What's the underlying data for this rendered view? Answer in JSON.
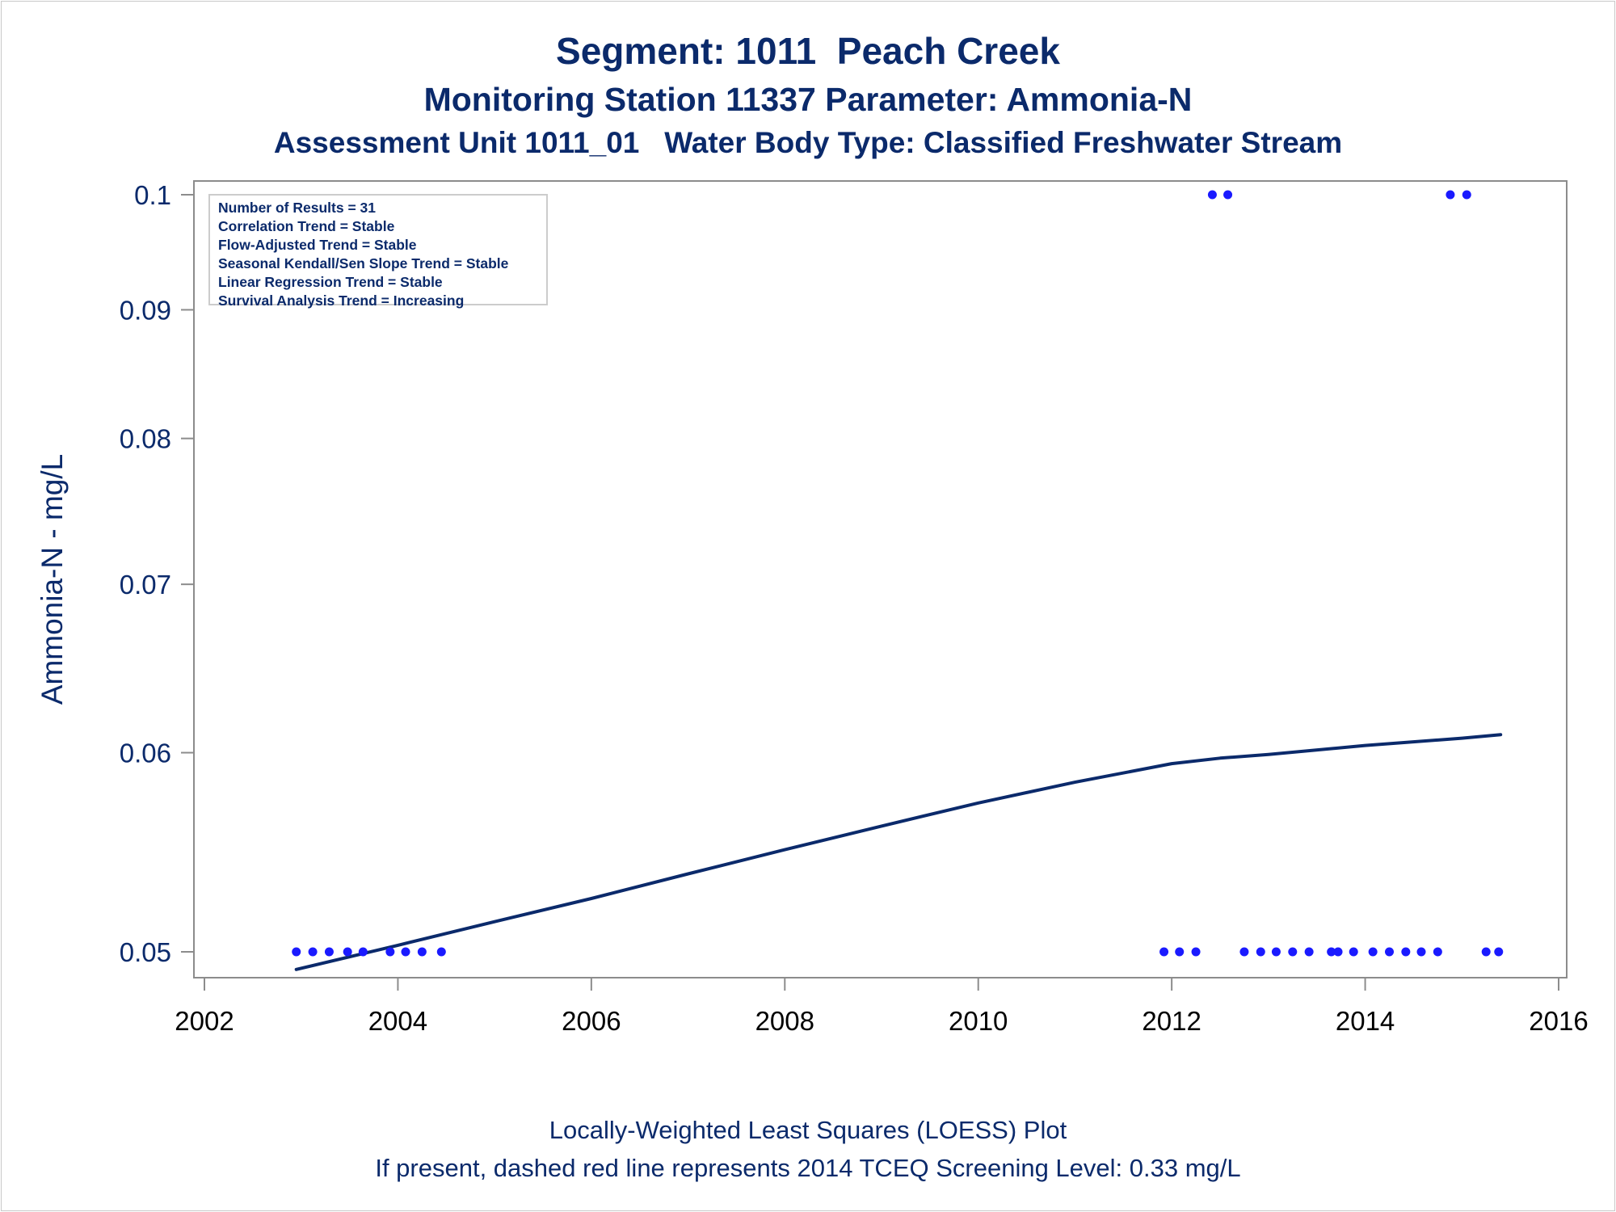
{
  "titles": {
    "line1": "Segment: 1011  Peach Creek",
    "line2": "Monitoring Station 11337 Parameter: Ammonia-N",
    "line3": "Assessment Unit 1011_01   Water Body Type: Classified Freshwater Stream"
  },
  "footnotes": {
    "line1": "Locally-Weighted Least Squares (LOESS) Plot",
    "line2": "If present, dashed red line represents 2014 TCEQ Screening Level: 0.33 mg/L"
  },
  "legend": [
    "Number of Results = 31",
    "Correlation Trend = Stable",
    "Flow-Adjusted Trend = Stable",
    "Seasonal Kendall/Sen Slope Trend = Stable",
    "Linear Regression Trend = Stable",
    "Survival Analysis Trend = Increasing"
  ],
  "chart_data": {
    "type": "scatter",
    "title": "Segment: 1011  Peach Creek",
    "xlabel": "",
    "ylabel": "Ammonia-N - mg/L",
    "yscale": "log",
    "xlim": [
      2002,
      2016
    ],
    "ylim": [
      0.05,
      0.1
    ],
    "xticks": [
      "2002",
      "2004",
      "2006",
      "2008",
      "2010",
      "2012",
      "2014",
      "2016"
    ],
    "yticks": [
      {
        "value": 0.05,
        "label": "0.05"
      },
      {
        "value": 0.06,
        "label": "0.06"
      },
      {
        "value": 0.07,
        "label": "0.07"
      },
      {
        "value": 0.08,
        "label": "0.08"
      },
      {
        "value": 0.09,
        "label": "0.09"
      },
      {
        "value": 0.1,
        "label": "0.1"
      }
    ],
    "grid": false,
    "legend_position": "top-left",
    "colors": {
      "points": "#1a1aff",
      "line": "#0b2a6b",
      "text": "#0b2a6b",
      "axis": "#8c8c8c"
    },
    "series": [
      {
        "type": "scatter",
        "x": [
          2002.95,
          2003.12,
          2003.29,
          2003.48,
          2003.64,
          2003.92,
          2004.08,
          2004.25,
          2004.45,
          2011.92,
          2012.08,
          2012.25,
          2012.42,
          2012.58,
          2012.75,
          2012.92,
          2013.08,
          2013.25,
          2013.42,
          2013.65,
          2013.72,
          2013.88,
          2014.08,
          2014.25,
          2014.42,
          2014.58,
          2014.75,
          2014.88,
          2015.05,
          2015.25,
          2015.38
        ],
        "y": [
          0.05,
          0.05,
          0.05,
          0.05,
          0.05,
          0.05,
          0.05,
          0.05,
          0.05,
          0.05,
          0.05,
          0.05,
          0.1,
          0.1,
          0.05,
          0.05,
          0.05,
          0.05,
          0.05,
          0.05,
          0.05,
          0.05,
          0.05,
          0.05,
          0.05,
          0.05,
          0.05,
          0.1,
          0.1,
          0.05,
          0.05
        ]
      },
      {
        "type": "line",
        "x": [
          2002.95,
          2004.0,
          2005.0,
          2006.0,
          2007.0,
          2008.0,
          2009.0,
          2010.0,
          2011.0,
          2012.0,
          2012.5,
          2013.0,
          2014.0,
          2015.0,
          2015.4
        ],
        "y": [
          0.0492,
          0.0503,
          0.0514,
          0.0525,
          0.0537,
          0.0549,
          0.0561,
          0.0573,
          0.0584,
          0.0594,
          0.0597,
          0.0599,
          0.0604,
          0.0608,
          0.061
        ]
      }
    ]
  }
}
